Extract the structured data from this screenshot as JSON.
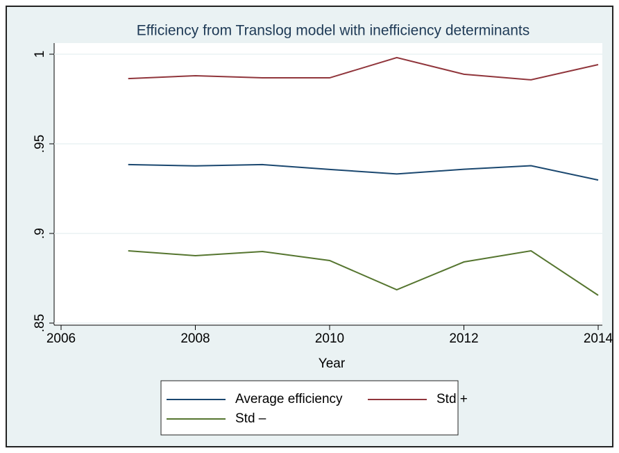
{
  "chart_data": {
    "type": "line",
    "title": "Efficiency from Translog model with inefficiency determinants",
    "xlabel": "Year",
    "x": [
      2007,
      2008,
      2009,
      2010,
      2011,
      2012,
      2013,
      2014
    ],
    "series": [
      {
        "name": "Average efficiency",
        "color": "#1a476f",
        "values": [
          0.9384,
          0.9377,
          0.9384,
          0.9357,
          0.9332,
          0.9358,
          0.9378,
          0.9298
        ]
      },
      {
        "name": "Std +",
        "color": "#90353b",
        "values": [
          0.9864,
          0.988,
          0.9868,
          0.9868,
          0.9981,
          0.9888,
          0.9857,
          0.9942
        ]
      },
      {
        "name": "Std –",
        "color": "#55752f",
        "values": [
          0.8903,
          0.8876,
          0.8899,
          0.8849,
          0.8686,
          0.8841,
          0.8903,
          0.8655
        ]
      }
    ],
    "xlim": [
      2006,
      2014
    ],
    "xticks": [
      2006,
      2008,
      2010,
      2012,
      2014
    ],
    "ylim": [
      0.85,
      1
    ],
    "yticks": [
      {
        "value": 0.85,
        "label": ".85"
      },
      {
        "value": 0.9,
        "label": ".9"
      },
      {
        "value": 0.95,
        "label": ".95"
      },
      1
    ],
    "grid": true,
    "legend": "bottom"
  }
}
